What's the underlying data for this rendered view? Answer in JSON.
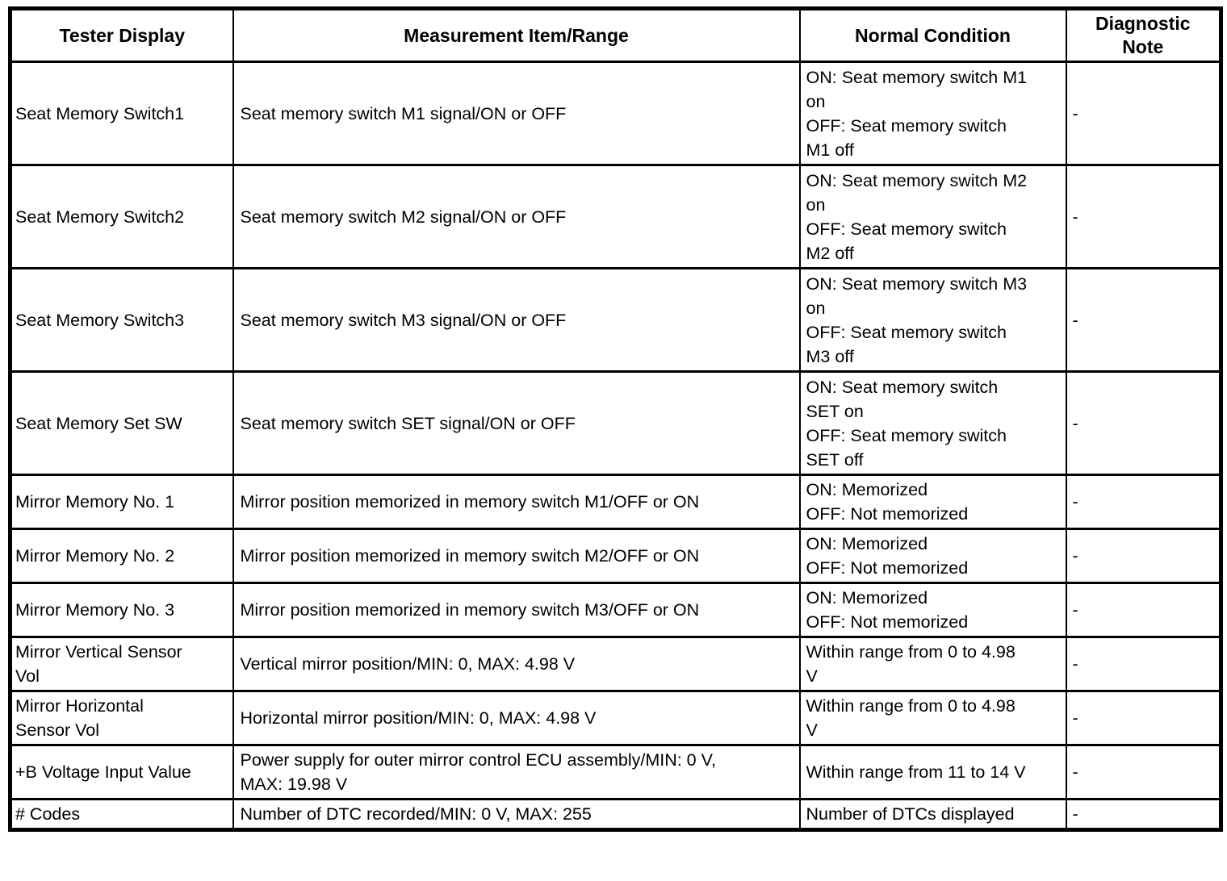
{
  "table": {
    "columns": [
      {
        "label": "Tester Display"
      },
      {
        "label": "Measurement Item/Range"
      },
      {
        "label": "Normal Condition"
      },
      {
        "label": "Diagnostic\nNote"
      }
    ],
    "rows": [
      {
        "tester_display": "Seat Memory Switch1",
        "measurement": "Seat memory switch M1 signal/ON or OFF",
        "normal_condition": "ON: Seat memory switch M1\non\nOFF: Seat memory switch\nM1 off",
        "diagnostic_note": "-"
      },
      {
        "tester_display": "Seat Memory Switch2",
        "measurement": "Seat memory switch M2 signal/ON or OFF",
        "normal_condition": "ON: Seat memory switch M2\non\nOFF: Seat memory switch\nM2 off",
        "diagnostic_note": "-"
      },
      {
        "tester_display": "Seat Memory Switch3",
        "measurement": "Seat memory switch M3 signal/ON or OFF",
        "normal_condition": "ON: Seat memory switch M3\non\nOFF: Seat memory switch\nM3 off",
        "diagnostic_note": "-"
      },
      {
        "tester_display": "Seat Memory Set SW",
        "measurement": "Seat memory switch SET signal/ON or OFF",
        "normal_condition": "ON: Seat memory switch\nSET on\nOFF: Seat memory switch\nSET off",
        "diagnostic_note": "-"
      },
      {
        "tester_display": "Mirror Memory No. 1",
        "measurement": "Mirror position memorized in memory switch M1/OFF or ON",
        "normal_condition": "ON: Memorized\nOFF: Not memorized",
        "diagnostic_note": "-"
      },
      {
        "tester_display": "Mirror Memory No. 2",
        "measurement": "Mirror position memorized in memory switch M2/OFF or ON",
        "normal_condition": "ON: Memorized\nOFF: Not memorized",
        "diagnostic_note": "-"
      },
      {
        "tester_display": "Mirror Memory No. 3",
        "measurement": "Mirror position memorized in memory switch M3/OFF or ON",
        "normal_condition": "ON: Memorized\nOFF: Not memorized",
        "diagnostic_note": "-"
      },
      {
        "tester_display": "Mirror Vertical Sensor\nVol",
        "measurement": "Vertical mirror position/MIN: 0, MAX: 4.98 V",
        "normal_condition": "Within range from 0 to 4.98\nV",
        "diagnostic_note": "-"
      },
      {
        "tester_display": "Mirror Horizontal\nSensor Vol",
        "measurement": "Horizontal mirror position/MIN: 0, MAX: 4.98 V",
        "normal_condition": "Within range from 0 to 4.98\nV",
        "diagnostic_note": "-"
      },
      {
        "tester_display": "+B Voltage Input Value",
        "measurement": "Power supply for outer mirror control ECU assembly/MIN: 0 V,\nMAX: 19.98 V",
        "normal_condition": "Within range from 11 to 14 V",
        "diagnostic_note": "-"
      },
      {
        "tester_display": "# Codes",
        "measurement": "Number of DTC recorded/MIN: 0 V, MAX: 255",
        "normal_condition": "Number of DTCs displayed",
        "diagnostic_note": "-"
      }
    ]
  }
}
